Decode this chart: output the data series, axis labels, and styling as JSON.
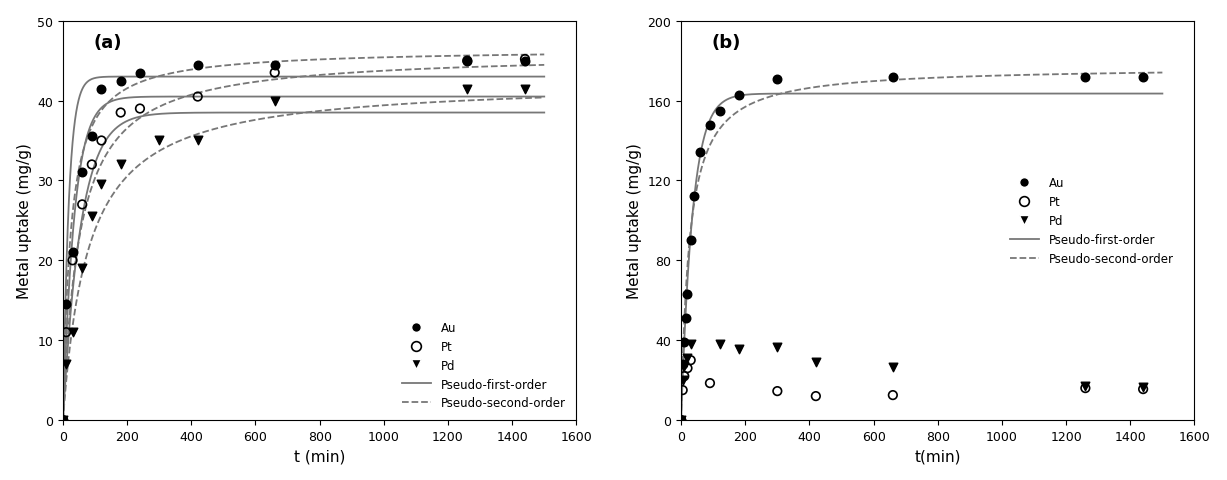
{
  "panel_a": {
    "label": "(a)",
    "xlabel": "t (min)",
    "ylabel": "Metal uptake (mg/g)",
    "xlim": [
      0,
      1600
    ],
    "ylim": [
      0,
      50
    ],
    "xticks": [
      0,
      200,
      400,
      600,
      800,
      1000,
      1200,
      1400,
      1600
    ],
    "yticks": [
      0,
      10,
      20,
      30,
      40,
      50
    ],
    "Au_t": [
      0,
      10,
      30,
      60,
      90,
      120,
      180,
      240,
      420,
      660,
      1260,
      1440
    ],
    "Au_data": [
      0,
      14.5,
      21.0,
      31.0,
      35.5,
      41.5,
      42.5,
      43.5,
      44.5,
      44.5,
      45.0,
      45.0
    ],
    "Pt_t": [
      0,
      10,
      30,
      60,
      90,
      120,
      180,
      240,
      420,
      660,
      1260,
      1440
    ],
    "Pt_data": [
      0,
      11.0,
      20.0,
      27.0,
      32.0,
      35.0,
      38.5,
      39.0,
      40.5,
      43.5,
      45.0,
      45.2
    ],
    "Pd_t": [
      0,
      10,
      30,
      60,
      90,
      120,
      180,
      300,
      420,
      660,
      1260,
      1440
    ],
    "Pd_data": [
      0,
      7.0,
      11.0,
      19.0,
      25.5,
      29.5,
      32.0,
      35.0,
      35.0,
      40.0,
      41.5,
      41.5
    ],
    "Au_pfo": [
      43.0,
      0.055
    ],
    "Au_pso": [
      46.5,
      0.0009
    ],
    "Pt_pfo": [
      40.5,
      0.028
    ],
    "Pt_pso": [
      46.0,
      0.00042
    ],
    "Pd_pfo": [
      38.5,
      0.018
    ],
    "Pd_pso": [
      42.5,
      0.0003
    ]
  },
  "panel_b": {
    "label": "(b)",
    "xlabel": "t(min)",
    "ylabel": "Metal uptake (mg/g)",
    "xlim": [
      0,
      1600
    ],
    "ylim": [
      0,
      200
    ],
    "xticks": [
      0,
      200,
      400,
      600,
      800,
      1000,
      1200,
      1400,
      1600
    ],
    "yticks": [
      0,
      40,
      80,
      120,
      160,
      200
    ],
    "Au_t": [
      0,
      5,
      10,
      15,
      20,
      30,
      40,
      60,
      90,
      120,
      180,
      300,
      660,
      1260,
      1440
    ],
    "Au_data": [
      0,
      28.0,
      39.0,
      51.0,
      63.0,
      90.0,
      112.0,
      134.0,
      148.0,
      155.0,
      163.0,
      171.0,
      172.0,
      172.0,
      172.0
    ],
    "Pt_t": [
      0,
      5,
      10,
      20,
      30,
      90,
      300,
      420,
      660,
      1260,
      1440
    ],
    "Pt_data": [
      0,
      15.0,
      22.0,
      26.0,
      30.0,
      18.5,
      14.5,
      12.0,
      12.5,
      16.0,
      15.5
    ],
    "Pd_t": [
      0,
      5,
      10,
      20,
      30,
      120,
      180,
      300,
      420,
      660,
      1260,
      1440
    ],
    "Pd_data": [
      0,
      20.0,
      27.0,
      31.0,
      38.0,
      38.0,
      35.5,
      36.5,
      29.0,
      26.5,
      17.0,
      16.5
    ],
    "Au_pfo": [
      163.5,
      0.028
    ],
    "Au_pso": [
      177.0,
      0.00022
    ]
  },
  "line_color": "#777777",
  "bg_color": "#ffffff",
  "legend_fontsize": 8.5,
  "axis_fontsize": 11,
  "label_fontsize": 13,
  "tick_fontsize": 9
}
